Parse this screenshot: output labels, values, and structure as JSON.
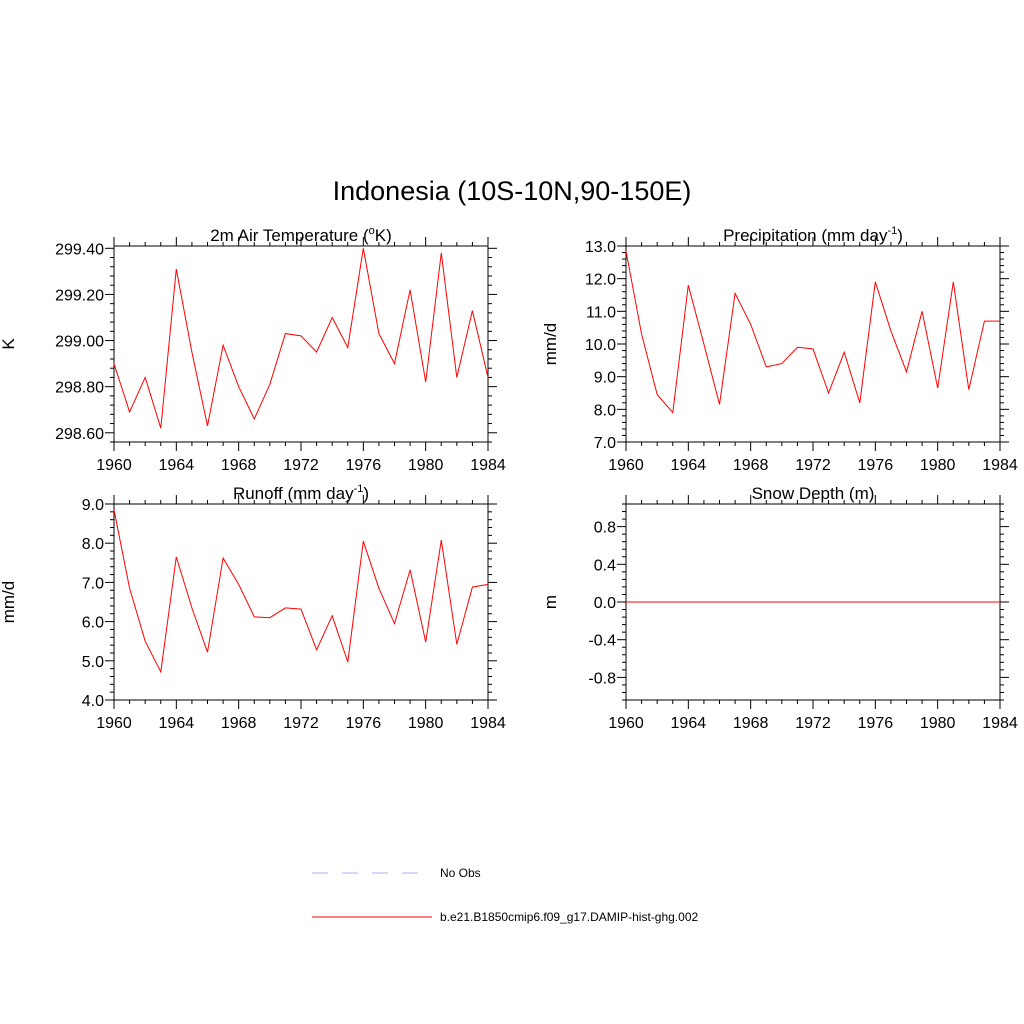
{
  "title": "Indonesia (10S-10N,90-150E)",
  "colors": {
    "model": "#ff0000",
    "obs": "#aab0ff",
    "axis": "#000000"
  },
  "legend": [
    {
      "label": "No Obs",
      "style": "dashed",
      "color": "#aab0ff"
    },
    {
      "label": "b.e21.B1850cmip6.f09_g17.DAMIP-hist-ghg.002",
      "style": "solid",
      "color": "#ff0000"
    }
  ],
  "chart_data": [
    {
      "type": "line",
      "title_main": "2m Air Temperature (",
      "title_sup": "o",
      "title_end": "K)",
      "ylabel": "K",
      "xlim": [
        1960,
        1984
      ],
      "ylim": [
        298.56,
        299.41
      ],
      "xticks": [
        1960,
        1964,
        1968,
        1972,
        1976,
        1980,
        1984
      ],
      "yticks": [
        298.6,
        298.8,
        299.0,
        299.2,
        299.4
      ],
      "ytick_labels": [
        "298.60",
        "298.80",
        "299.00",
        "299.20",
        "299.40"
      ],
      "series": [
        {
          "x": [
            1960,
            1961,
            1962,
            1963,
            1964,
            1965,
            1966,
            1967,
            1968,
            1969,
            1970,
            1971,
            1972,
            1973,
            1974,
            1975,
            1976,
            1977,
            1978,
            1979,
            1980,
            1981,
            1982,
            1983,
            1984
          ],
          "y": [
            298.9,
            298.69,
            298.84,
            298.62,
            299.31,
            298.95,
            298.63,
            298.98,
            298.8,
            298.66,
            298.81,
            299.03,
            299.02,
            298.95,
            299.1,
            298.97,
            299.4,
            299.03,
            298.9,
            299.22,
            298.82,
            299.38,
            298.84,
            299.13,
            298.84
          ]
        }
      ]
    },
    {
      "type": "line",
      "title_main": "Precipitation (mm day",
      "title_sup": "-1",
      "title_end": ")",
      "ylabel": "mm/d",
      "xlim": [
        1960,
        1984
      ],
      "ylim": [
        7.0,
        13.0
      ],
      "xticks": [
        1960,
        1964,
        1968,
        1972,
        1976,
        1980,
        1984
      ],
      "yticks": [
        7,
        8,
        9,
        10,
        11,
        12,
        13
      ],
      "ytick_labels": [
        "7.0",
        "8.0",
        "9.0",
        "10.0",
        "11.0",
        "12.0",
        "13.0"
      ],
      "series": [
        {
          "x": [
            1960,
            1961,
            1962,
            1963,
            1964,
            1965,
            1966,
            1967,
            1968,
            1969,
            1970,
            1971,
            1972,
            1973,
            1974,
            1975,
            1976,
            1977,
            1978,
            1979,
            1980,
            1981,
            1982,
            1983,
            1984
          ],
          "y": [
            12.85,
            10.3,
            8.45,
            7.9,
            11.8,
            10.0,
            8.15,
            11.55,
            10.6,
            9.3,
            9.4,
            9.9,
            9.85,
            8.5,
            9.75,
            8.2,
            11.9,
            10.4,
            9.15,
            11.0,
            8.65,
            11.9,
            8.6,
            10.7,
            10.7
          ]
        }
      ]
    },
    {
      "type": "line",
      "title_main": "Runoff (mm day",
      "title_sup": "-1",
      "title_end": ")",
      "ylabel": "mm/d",
      "xlim": [
        1960,
        1984
      ],
      "ylim": [
        4.0,
        9.0
      ],
      "xticks": [
        1960,
        1964,
        1968,
        1972,
        1976,
        1980,
        1984
      ],
      "yticks": [
        4,
        5,
        6,
        7,
        8,
        9
      ],
      "ytick_labels": [
        "4.0",
        "5.0",
        "6.0",
        "7.0",
        "8.0",
        "9.0"
      ],
      "series": [
        {
          "x": [
            1960,
            1961,
            1962,
            1963,
            1964,
            1965,
            1966,
            1967,
            1968,
            1969,
            1970,
            1971,
            1972,
            1973,
            1974,
            1975,
            1976,
            1977,
            1978,
            1979,
            1980,
            1981,
            1982,
            1983,
            1984
          ],
          "y": [
            8.85,
            6.85,
            5.5,
            4.72,
            7.65,
            6.35,
            5.22,
            7.62,
            6.95,
            6.12,
            6.1,
            6.35,
            6.32,
            5.28,
            6.15,
            4.97,
            8.05,
            6.85,
            5.95,
            7.32,
            5.48,
            8.08,
            5.42,
            6.88,
            6.95
          ]
        }
      ]
    },
    {
      "type": "line",
      "title_main": "Snow Depth (m)",
      "title_sup": "",
      "title_end": "",
      "ylabel": "m",
      "xlim": [
        1960,
        1984
      ],
      "ylim": [
        -1.04,
        1.04
      ],
      "xticks": [
        1960,
        1964,
        1968,
        1972,
        1976,
        1980,
        1984
      ],
      "yticks": [
        -0.8,
        -0.4,
        0.0,
        0.4,
        0.8
      ],
      "ytick_labels": [
        "-0.8",
        "-0.4",
        "0.0",
        "0.4",
        "0.8"
      ],
      "series": [
        {
          "x": [
            1960,
            1984
          ],
          "y": [
            0.0,
            0.0
          ]
        }
      ]
    }
  ]
}
